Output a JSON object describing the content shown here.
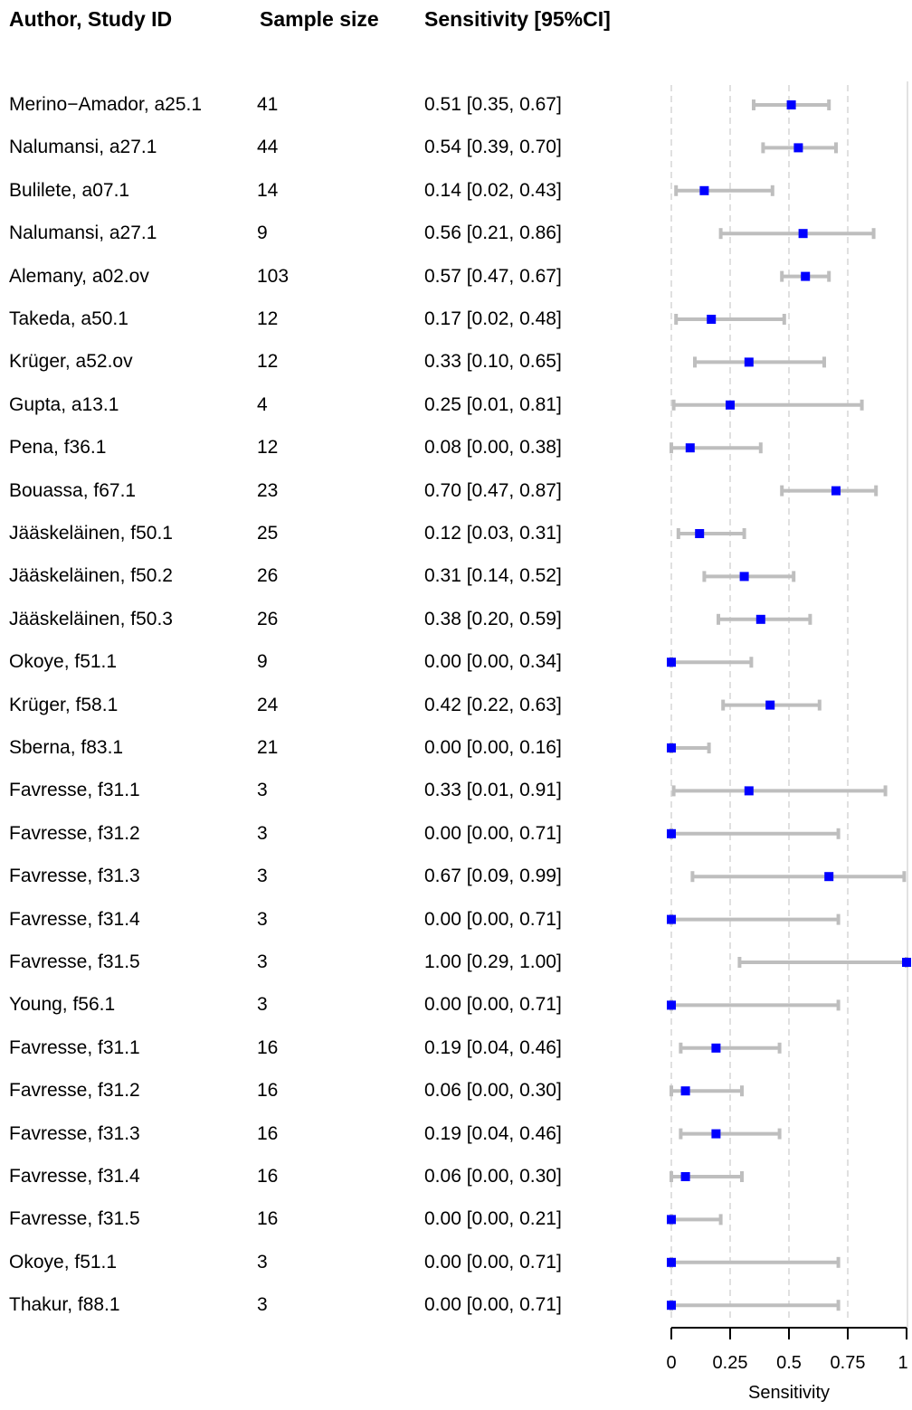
{
  "headers": {
    "author": "Author, Study ID",
    "sample_size": "Sample size",
    "sensitivity": "Sensitivity [95%CI]"
  },
  "colors": {
    "point": "#0000ff",
    "ci": "#bebebe",
    "grid": "#d9d9d9",
    "axis": "#000000"
  },
  "chart_data": {
    "type": "scatter",
    "xlabel": "Sensitivity",
    "xlim": [
      0,
      1
    ],
    "xticks": [
      0,
      0.25,
      0.5,
      0.75,
      1
    ],
    "xtick_labels": [
      "0",
      "0.25",
      "0.5",
      "0.75",
      "1"
    ],
    "reference_lines": [
      0,
      0.25,
      0.5,
      0.75
    ],
    "rows": [
      {
        "study": "Merino−Amador, a25.1",
        "n": "41",
        "label": "0.51 [0.35, 0.67]",
        "est": 0.51,
        "lo": 0.35,
        "hi": 0.67
      },
      {
        "study": "Nalumansi, a27.1",
        "n": "44",
        "label": "0.54 [0.39, 0.70]",
        "est": 0.54,
        "lo": 0.39,
        "hi": 0.7
      },
      {
        "study": "Bulilete, a07.1",
        "n": "14",
        "label": "0.14 [0.02, 0.43]",
        "est": 0.14,
        "lo": 0.02,
        "hi": 0.43
      },
      {
        "study": "Nalumansi, a27.1",
        "n": "9",
        "label": "0.56 [0.21, 0.86]",
        "est": 0.56,
        "lo": 0.21,
        "hi": 0.86
      },
      {
        "study": "Alemany, a02.ov",
        "n": "103",
        "label": "0.57 [0.47, 0.67]",
        "est": 0.57,
        "lo": 0.47,
        "hi": 0.67
      },
      {
        "study": "Takeda, a50.1",
        "n": "12",
        "label": "0.17 [0.02, 0.48]",
        "est": 0.17,
        "lo": 0.02,
        "hi": 0.48
      },
      {
        "study": "Krüger, a52.ov",
        "n": "12",
        "label": "0.33 [0.10, 0.65]",
        "est": 0.33,
        "lo": 0.1,
        "hi": 0.65
      },
      {
        "study": "Gupta, a13.1",
        "n": "4",
        "label": "0.25 [0.01, 0.81]",
        "est": 0.25,
        "lo": 0.01,
        "hi": 0.81
      },
      {
        "study": "Pena, f36.1",
        "n": "12",
        "label": "0.08 [0.00, 0.38]",
        "est": 0.08,
        "lo": 0.0,
        "hi": 0.38
      },
      {
        "study": "Bouassa, f67.1",
        "n": "23",
        "label": "0.70 [0.47, 0.87]",
        "est": 0.7,
        "lo": 0.47,
        "hi": 0.87
      },
      {
        "study": "Jääskeläinen, f50.1",
        "n": "25",
        "label": "0.12 [0.03, 0.31]",
        "est": 0.12,
        "lo": 0.03,
        "hi": 0.31
      },
      {
        "study": "Jääskeläinen, f50.2",
        "n": "26",
        "label": "0.31 [0.14, 0.52]",
        "est": 0.31,
        "lo": 0.14,
        "hi": 0.52
      },
      {
        "study": "Jääskeläinen, f50.3",
        "n": "26",
        "label": "0.38 [0.20, 0.59]",
        "est": 0.38,
        "lo": 0.2,
        "hi": 0.59
      },
      {
        "study": "Okoye, f51.1",
        "n": "9",
        "label": "0.00 [0.00, 0.34]",
        "est": 0.0,
        "lo": 0.0,
        "hi": 0.34
      },
      {
        "study": "Krüger, f58.1",
        "n": "24",
        "label": "0.42 [0.22, 0.63]",
        "est": 0.42,
        "lo": 0.22,
        "hi": 0.63
      },
      {
        "study": "Sberna, f83.1",
        "n": "21",
        "label": "0.00 [0.00, 0.16]",
        "est": 0.0,
        "lo": 0.0,
        "hi": 0.16
      },
      {
        "study": "Favresse, f31.1",
        "n": "3",
        "label": "0.33 [0.01, 0.91]",
        "est": 0.33,
        "lo": 0.01,
        "hi": 0.91
      },
      {
        "study": "Favresse, f31.2",
        "n": "3",
        "label": "0.00 [0.00, 0.71]",
        "est": 0.0,
        "lo": 0.0,
        "hi": 0.71
      },
      {
        "study": "Favresse, f31.3",
        "n": "3",
        "label": "0.67 [0.09, 0.99]",
        "est": 0.67,
        "lo": 0.09,
        "hi": 0.99
      },
      {
        "study": "Favresse, f31.4",
        "n": "3",
        "label": "0.00 [0.00, 0.71]",
        "est": 0.0,
        "lo": 0.0,
        "hi": 0.71
      },
      {
        "study": "Favresse, f31.5",
        "n": "3",
        "label": "1.00 [0.29, 1.00]",
        "est": 1.0,
        "lo": 0.29,
        "hi": 1.0
      },
      {
        "study": "Young, f56.1",
        "n": "3",
        "label": "0.00 [0.00, 0.71]",
        "est": 0.0,
        "lo": 0.0,
        "hi": 0.71
      },
      {
        "study": "Favresse, f31.1",
        "n": "16",
        "label": "0.19 [0.04, 0.46]",
        "est": 0.19,
        "lo": 0.04,
        "hi": 0.46
      },
      {
        "study": "Favresse, f31.2",
        "n": "16",
        "label": "0.06 [0.00, 0.30]",
        "est": 0.06,
        "lo": 0.0,
        "hi": 0.3
      },
      {
        "study": "Favresse, f31.3",
        "n": "16",
        "label": "0.19 [0.04, 0.46]",
        "est": 0.19,
        "lo": 0.04,
        "hi": 0.46
      },
      {
        "study": "Favresse, f31.4",
        "n": "16",
        "label": "0.06 [0.00, 0.30]",
        "est": 0.06,
        "lo": 0.0,
        "hi": 0.3
      },
      {
        "study": "Favresse, f31.5",
        "n": "16",
        "label": "0.00 [0.00, 0.21]",
        "est": 0.0,
        "lo": 0.0,
        "hi": 0.21
      },
      {
        "study": "Okoye, f51.1",
        "n": "3",
        "label": "0.00 [0.00, 0.71]",
        "est": 0.0,
        "lo": 0.0,
        "hi": 0.71
      },
      {
        "study": "Thakur, f88.1",
        "n": "3",
        "label": "0.00 [0.00, 0.71]",
        "est": 0.0,
        "lo": 0.0,
        "hi": 0.71
      }
    ]
  }
}
